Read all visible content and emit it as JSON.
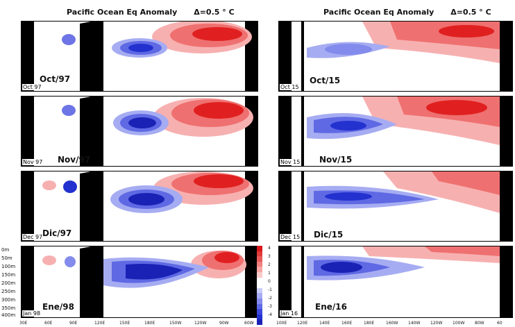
{
  "titles": {
    "left": "Pacific Ocean Eq Anomaly",
    "left_delta": "Δ=0.5 ° C",
    "right": "Pacific Ocean Eq Anomaly",
    "right_delta": "Δ=0.5 ° C"
  },
  "panels": [
    {
      "id": "oct97",
      "corner": "Oct 97",
      "label": "Oct/97",
      "side": "left",
      "row": 0
    },
    {
      "id": "nov97",
      "corner": "Nov 97",
      "label": "Nov/97",
      "side": "left",
      "row": 1
    },
    {
      "id": "dec97",
      "corner": "Dec 97",
      "label": "Dic/97",
      "side": "left",
      "row": 2
    },
    {
      "id": "jan98",
      "corner": "Jan 98",
      "label": "Ene/98",
      "side": "left",
      "row": 3
    },
    {
      "id": "oct15",
      "corner": "Oct 15",
      "label": "Oct/15",
      "side": "right",
      "row": 0
    },
    {
      "id": "nov15",
      "corner": "Nov 15",
      "label": "Nov/15",
      "side": "right",
      "row": 1
    },
    {
      "id": "dec15",
      "corner": "Dec 15",
      "label": "Dic/15",
      "side": "right",
      "row": 2
    },
    {
      "id": "jan16",
      "corner": "Jan 16",
      "label": "Ene/16",
      "side": "right",
      "row": 3
    }
  ],
  "depth_ticks": [
    "0m",
    "50m",
    "100m",
    "150m",
    "200m",
    "250m",
    "300m",
    "350m",
    "400m"
  ],
  "x_ticks_left": [
    "30E",
    "60E",
    "90E",
    "120E",
    "150E",
    "180E",
    "150W",
    "120W",
    "90W",
    "60W"
  ],
  "x_ticks_right": [
    "100E",
    "120E",
    "140E",
    "160E",
    "180E",
    "160W",
    "140W",
    "120W",
    "100W",
    "80W",
    "60"
  ],
  "colorbar": {
    "ticks": [
      "4",
      "3",
      "2",
      "1",
      "0",
      "-1",
      "-2",
      "-3",
      "-4"
    ],
    "colors": [
      "#d7191c",
      "#e03a3a",
      "#e85a5a",
      "#f07f7f",
      "#f6a5a5",
      "#fbcaca",
      "#ffffff",
      "#ffffff",
      "#c9cdf8",
      "#a6acf2",
      "#838bec",
      "#5f69e4",
      "#3e48dc",
      "#2331cf",
      "#1a22b5"
    ]
  },
  "chart_data": {
    "type": "heatmap",
    "variable": "Pacific Ocean equatorial subsurface temperature anomaly",
    "contour_interval_C": 0.5,
    "depth_range_m": [
      0,
      400
    ],
    "color_range_C": [
      -4,
      4
    ],
    "features": {
      "oct97": {
        "warm_max_C": 4,
        "cold_min_C": -4
      },
      "nov97": {
        "warm_max_C": 4,
        "cold_min_C": -4
      },
      "dec97": {
        "warm_max_C": 4,
        "cold_min_C": -4
      },
      "jan98": {
        "warm_max_C": 4,
        "cold_min_C": -4
      },
      "oct15": {
        "warm_max_C": 4,
        "cold_min_C": -2
      },
      "nov15": {
        "warm_max_C": 4,
        "cold_min_C": -3
      },
      "dec15": {
        "warm_max_C": 3,
        "cold_min_C": -3
      },
      "jan16": {
        "warm_max_C": 2,
        "cold_min_C": -4
      }
    }
  }
}
